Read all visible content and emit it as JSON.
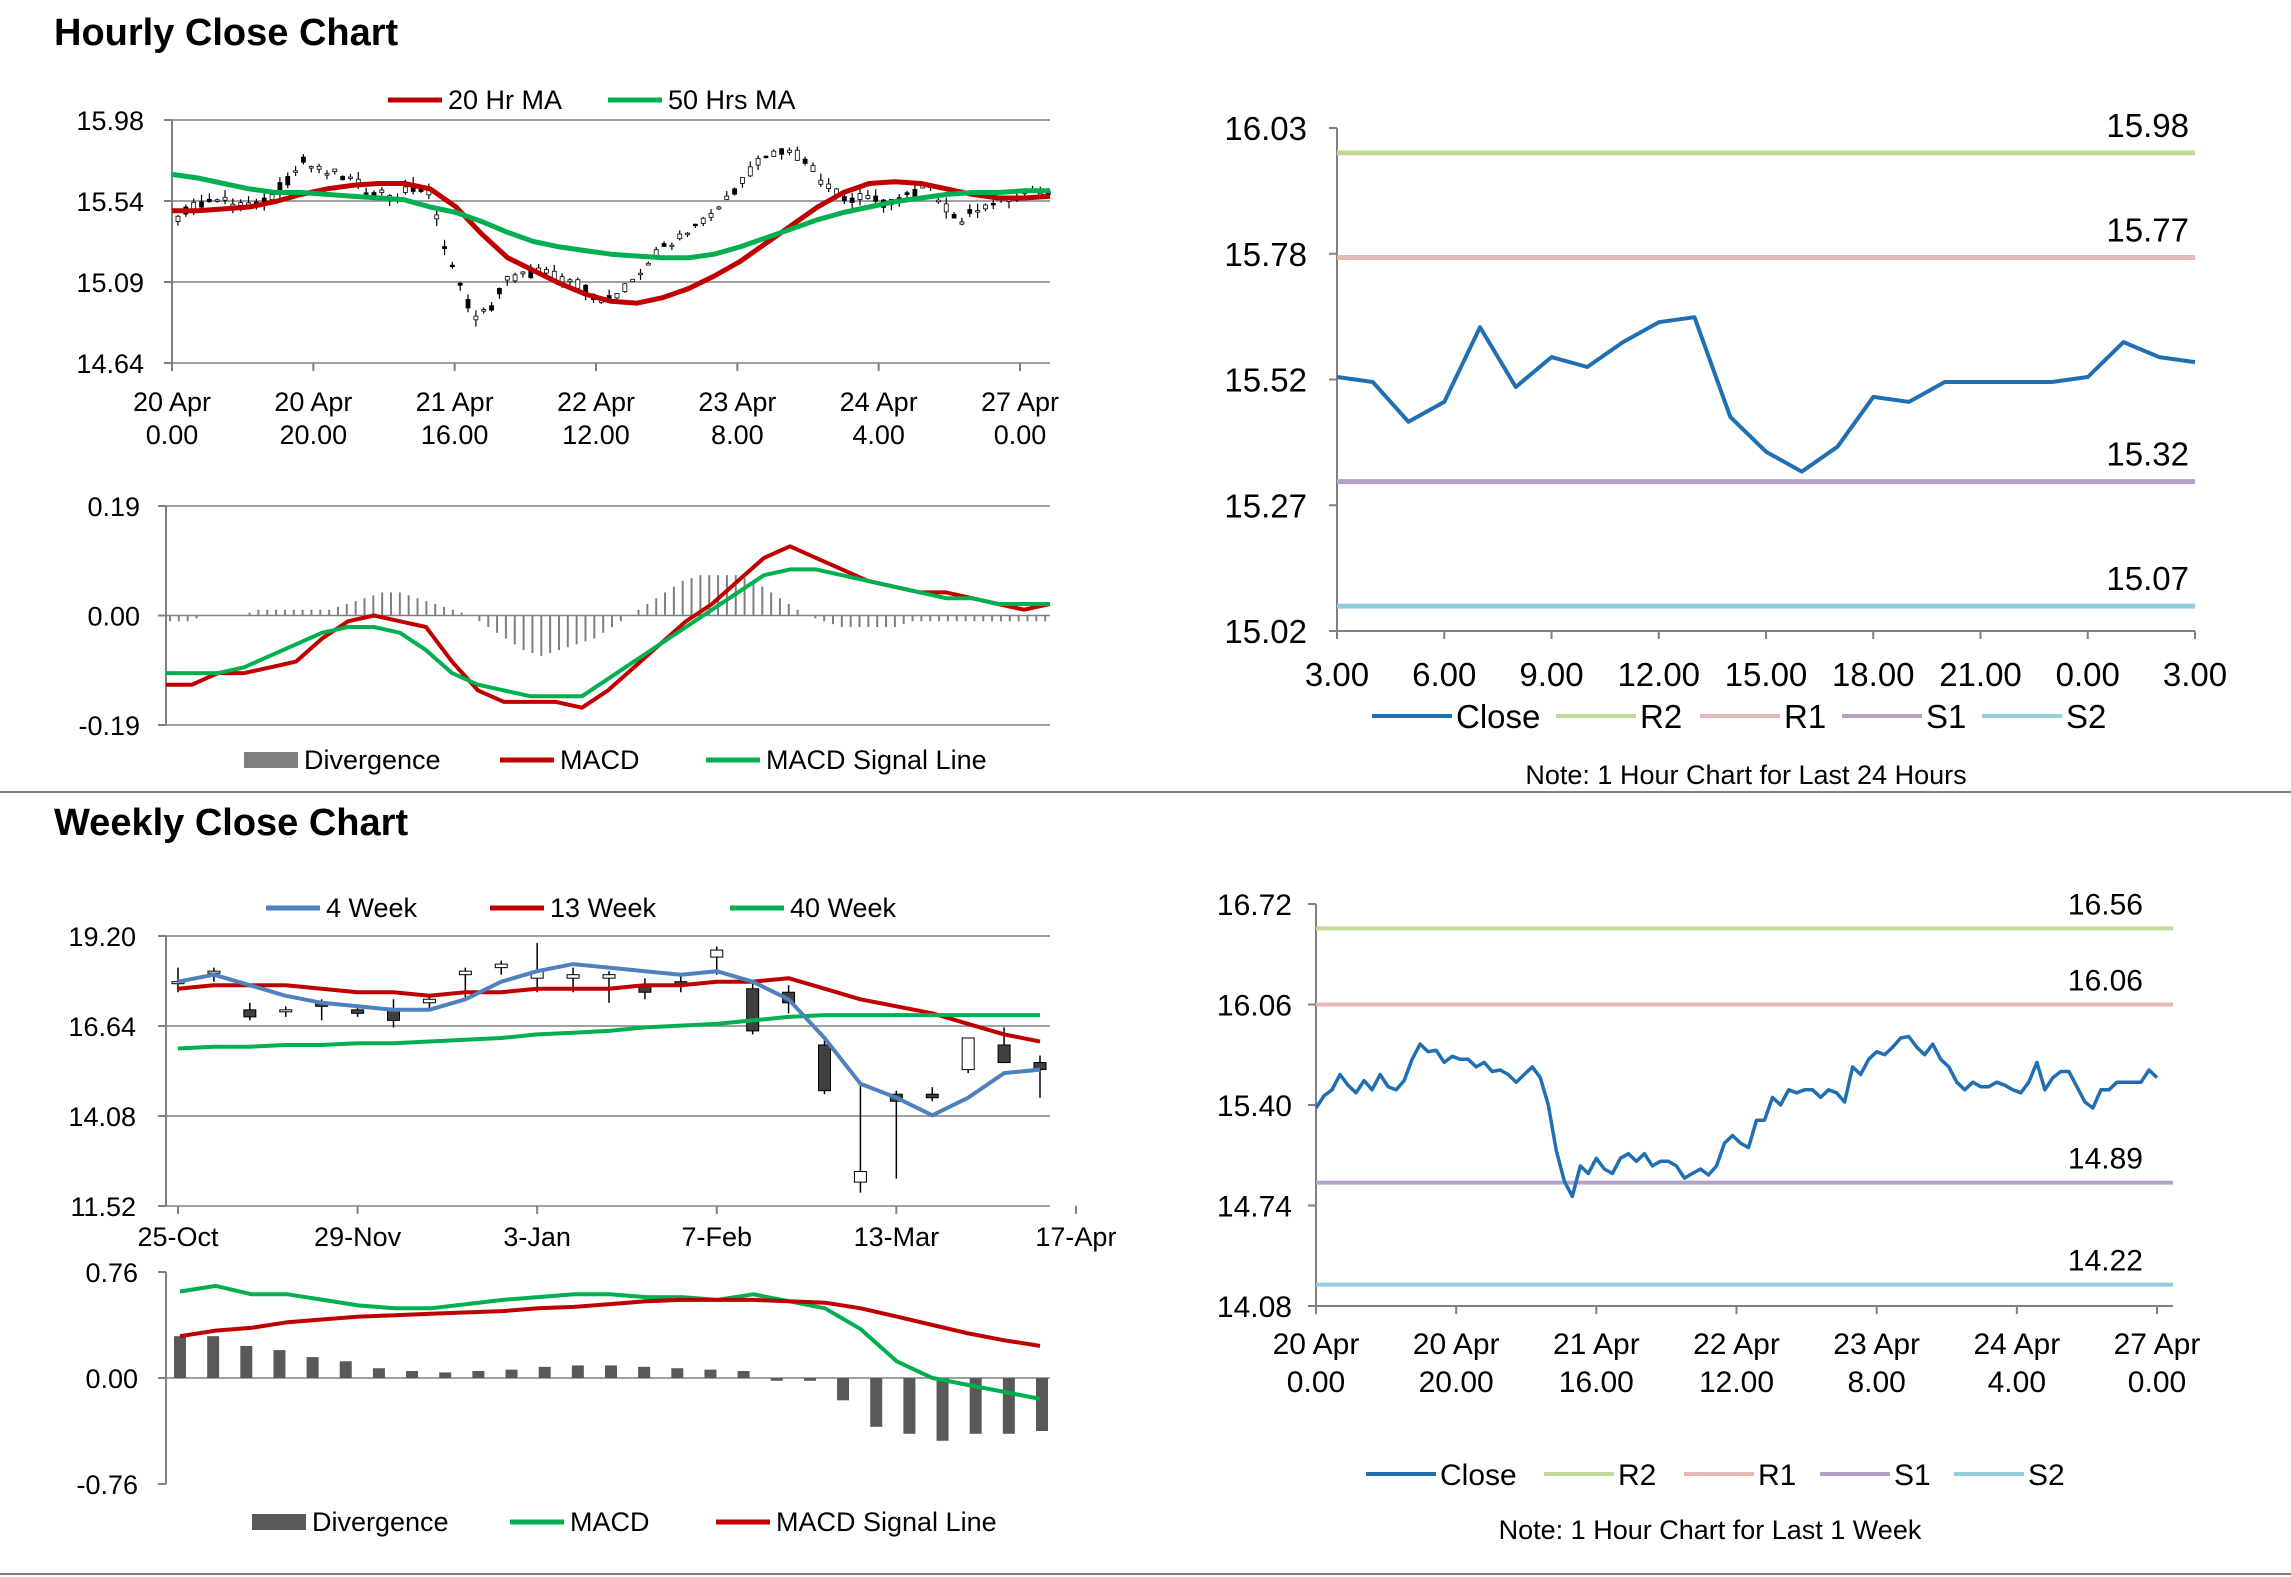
{
  "sections": {
    "hourly_title": "Hourly Close Chart",
    "weekly_title": "Weekly Close Chart"
  },
  "colors": {
    "ma_red": "#c00000",
    "ma_green": "#00b050",
    "ma_blue": "#4f81bd",
    "close_blue": "#1f6fb2",
    "r2": "#c4d79b",
    "r1": "#e6b9b8",
    "s1": "#b3a2c7",
    "s2": "#93cddd",
    "divergence": "#7f7f7f",
    "divergence_weekly": "#595959"
  },
  "chart_data": [
    {
      "id": "hourly-price",
      "type": "candlestick",
      "title": "",
      "ylim": [
        14.64,
        15.98
      ],
      "yticks": [
        "15.98",
        "15.54",
        "15.09",
        "14.64"
      ],
      "xticks": [
        {
          "l1": "20 Apr",
          "l2": "0.00"
        },
        {
          "l1": "20 Apr",
          "l2": "20.00"
        },
        {
          "l1": "21 Apr",
          "l2": "16.00"
        },
        {
          "l1": "22 Apr",
          "l2": "12.00"
        },
        {
          "l1": "23 Apr",
          "l2": "8.00"
        },
        {
          "l1": "24 Apr",
          "l2": "4.00"
        },
        {
          "l1": "27 Apr",
          "l2": "0.00"
        }
      ],
      "legend": [
        "20 Hr MA",
        "50 Hrs MA"
      ],
      "close_path": [
        15.45,
        15.5,
        15.55,
        15.53,
        15.52,
        15.5,
        15.56,
        15.65,
        15.75,
        15.7,
        15.68,
        15.65,
        15.6,
        15.58,
        15.57,
        15.6,
        15.58,
        15.3,
        15.05,
        14.88,
        14.95,
        15.1,
        15.12,
        15.15,
        15.12,
        15.1,
        15.05,
        14.98,
        15.0,
        15.1,
        15.2,
        15.28,
        15.35,
        15.4,
        15.45,
        15.55,
        15.65,
        15.75,
        15.8,
        15.82,
        15.75,
        15.65,
        15.58,
        15.55,
        15.55,
        15.52,
        15.55,
        15.58,
        15.6,
        15.5,
        15.42,
        15.5,
        15.52,
        15.54,
        15.56,
        15.58
      ],
      "series": [
        {
          "name": "20 Hr MA",
          "values": [
            15.48,
            15.48,
            15.49,
            15.5,
            15.53,
            15.57,
            15.6,
            15.62,
            15.63,
            15.63,
            15.6,
            15.5,
            15.35,
            15.22,
            15.15,
            15.08,
            15.02,
            14.98,
            14.97,
            15.0,
            15.05,
            15.12,
            15.2,
            15.3,
            15.4,
            15.5,
            15.58,
            15.63,
            15.64,
            15.63,
            15.6,
            15.57,
            15.55,
            15.55,
            15.56
          ]
        },
        {
          "name": "50 Hrs MA",
          "values": [
            15.68,
            15.66,
            15.63,
            15.6,
            15.58,
            15.58,
            15.57,
            15.56,
            15.55,
            15.54,
            15.5,
            15.47,
            15.42,
            15.36,
            15.31,
            15.28,
            15.26,
            15.24,
            15.23,
            15.22,
            15.22,
            15.24,
            15.28,
            15.33,
            15.38,
            15.43,
            15.47,
            15.5,
            15.53,
            15.55,
            15.57,
            15.58,
            15.58,
            15.59,
            15.59
          ]
        }
      ]
    },
    {
      "id": "hourly-macd",
      "type": "bar+line",
      "ylim": [
        -0.19,
        0.19
      ],
      "yticks": [
        "0.19",
        "0.00",
        "-0.19"
      ],
      "legend": [
        "Divergence",
        "MACD",
        "MACD Signal Line"
      ],
      "divergence": [
        -0.01,
        -0.01,
        0.0,
        0.0,
        0.0,
        0.01,
        0.01,
        0.01,
        0.01,
        0.01,
        0.02,
        0.03,
        0.04,
        0.04,
        0.03,
        0.02,
        0.01,
        0.0,
        -0.02,
        -0.04,
        -0.06,
        -0.07,
        -0.06,
        -0.05,
        -0.04,
        -0.02,
        0.0,
        0.02,
        0.04,
        0.06,
        0.07,
        0.07,
        0.07,
        0.06,
        0.04,
        0.02,
        0.0,
        -0.01,
        -0.02,
        -0.02,
        -0.02,
        -0.02,
        -0.01,
        -0.01,
        -0.01,
        -0.01,
        -0.01,
        -0.01,
        -0.01,
        -0.01
      ],
      "series": [
        {
          "name": "MACD",
          "values": [
            -0.12,
            -0.12,
            -0.1,
            -0.1,
            -0.09,
            -0.08,
            -0.04,
            -0.01,
            0.0,
            -0.01,
            -0.02,
            -0.08,
            -0.13,
            -0.15,
            -0.15,
            -0.15,
            -0.16,
            -0.13,
            -0.09,
            -0.05,
            -0.01,
            0.02,
            0.06,
            0.1,
            0.12,
            0.1,
            0.08,
            0.06,
            0.05,
            0.04,
            0.04,
            0.03,
            0.02,
            0.01,
            0.02
          ]
        },
        {
          "name": "MACD Signal Line",
          "values": [
            -0.1,
            -0.1,
            -0.1,
            -0.09,
            -0.07,
            -0.05,
            -0.03,
            -0.02,
            -0.02,
            -0.03,
            -0.06,
            -0.1,
            -0.12,
            -0.13,
            -0.14,
            -0.14,
            -0.14,
            -0.11,
            -0.08,
            -0.05,
            -0.02,
            0.01,
            0.04,
            0.07,
            0.08,
            0.08,
            0.07,
            0.06,
            0.05,
            0.04,
            0.03,
            0.03,
            0.02,
            0.02,
            0.02
          ]
        }
      ]
    },
    {
      "id": "hourly-close-24h",
      "type": "line",
      "ylim": [
        15.02,
        16.03
      ],
      "yticks": [
        "16.03",
        "15.78",
        "15.52",
        "15.27",
        "15.02"
      ],
      "xticks": [
        "3.00",
        "6.00",
        "9.00",
        "12.00",
        "15.00",
        "18.00",
        "21.00",
        "0.00",
        "3.00"
      ],
      "x": [
        3,
        4,
        5,
        6,
        7,
        8,
        9,
        10,
        11,
        12,
        13,
        14,
        15,
        16,
        17,
        18,
        19,
        20,
        21,
        22,
        23,
        24,
        25,
        26,
        27
      ],
      "values": [
        15.53,
        15.52,
        15.44,
        15.48,
        15.63,
        15.51,
        15.57,
        15.55,
        15.6,
        15.64,
        15.65,
        15.45,
        15.38,
        15.34,
        15.39,
        15.49,
        15.48,
        15.52,
        15.52,
        15.52,
        15.52,
        15.53,
        15.6,
        15.57,
        15.56
      ],
      "levels": [
        {
          "name": "R2",
          "value": 15.98,
          "label": "15.98"
        },
        {
          "name": "R1",
          "value": 15.77,
          "label": "15.77"
        },
        {
          "name": "S1",
          "value": 15.32,
          "label": "15.32"
        },
        {
          "name": "S2",
          "value": 15.07,
          "label": "15.07"
        }
      ],
      "legend": [
        "Close",
        "R2",
        "R1",
        "S1",
        "S2"
      ],
      "note": "Note: 1 Hour Chart for Last 24 Hours"
    },
    {
      "id": "weekly-price",
      "type": "candlestick",
      "ylim": [
        11.52,
        19.2
      ],
      "yticks": [
        "19.20",
        "16.64",
        "14.08",
        "11.52"
      ],
      "xticks": [
        "25-Oct",
        "29-Nov",
        "3-Jan",
        "7-Feb",
        "13-Mar",
        "17-Apr"
      ],
      "legend": [
        "4 Week",
        "13 Week",
        "40 Week"
      ],
      "candles": [
        {
          "o": 17.9,
          "h": 18.3,
          "l": 17.6,
          "c": 17.9
        },
        {
          "o": 18.2,
          "h": 18.3,
          "l": 17.9,
          "c": 18.2
        },
        {
          "o": 17.1,
          "h": 17.3,
          "l": 16.8,
          "c": 16.9
        },
        {
          "o": 17.1,
          "h": 17.2,
          "l": 16.9,
          "c": 17.1
        },
        {
          "o": 17.3,
          "h": 17.4,
          "l": 16.8,
          "c": 17.2
        },
        {
          "o": 17.1,
          "h": 17.2,
          "l": 16.9,
          "c": 17.0
        },
        {
          "o": 17.1,
          "h": 17.4,
          "l": 16.6,
          "c": 16.8
        },
        {
          "o": 17.3,
          "h": 17.5,
          "l": 17.1,
          "c": 17.4
        },
        {
          "o": 18.1,
          "h": 18.3,
          "l": 17.4,
          "c": 18.2
        },
        {
          "o": 18.3,
          "h": 18.5,
          "l": 18.1,
          "c": 18.4
        },
        {
          "o": 18.0,
          "h": 19.0,
          "l": 17.6,
          "c": 18.2
        },
        {
          "o": 18.0,
          "h": 18.3,
          "l": 17.6,
          "c": 18.1
        },
        {
          "o": 18.0,
          "h": 18.2,
          "l": 17.3,
          "c": 18.1
        },
        {
          "o": 17.8,
          "h": 18.0,
          "l": 17.4,
          "c": 17.6
        },
        {
          "o": 17.9,
          "h": 18.1,
          "l": 17.6,
          "c": 17.8
        },
        {
          "o": 18.6,
          "h": 18.9,
          "l": 18.1,
          "c": 18.8
        },
        {
          "o": 17.7,
          "h": 17.9,
          "l": 16.4,
          "c": 16.5
        },
        {
          "o": 17.6,
          "h": 17.8,
          "l": 17.0,
          "c": 17.3
        },
        {
          "o": 16.1,
          "h": 16.3,
          "l": 14.7,
          "c": 14.8
        },
        {
          "o": 12.2,
          "h": 15.0,
          "l": 11.9,
          "c": 12.5
        },
        {
          "o": 14.7,
          "h": 14.8,
          "l": 12.3,
          "c": 14.5
        },
        {
          "o": 14.7,
          "h": 14.9,
          "l": 14.5,
          "c": 14.6
        },
        {
          "o": 15.4,
          "h": 16.3,
          "l": 15.3,
          "c": 16.3
        },
        {
          "o": 16.1,
          "h": 16.6,
          "l": 15.6,
          "c": 15.6
        },
        {
          "o": 15.6,
          "h": 15.8,
          "l": 14.6,
          "c": 15.4
        }
      ],
      "series": [
        {
          "name": "4 Week",
          "values": [
            17.9,
            18.1,
            17.8,
            17.5,
            17.3,
            17.2,
            17.1,
            17.1,
            17.4,
            17.9,
            18.2,
            18.4,
            18.3,
            18.2,
            18.1,
            18.2,
            17.9,
            17.4,
            16.3,
            15.0,
            14.6,
            14.1,
            14.6,
            15.3,
            15.4
          ]
        },
        {
          "name": "13 Week",
          "values": [
            17.7,
            17.8,
            17.8,
            17.8,
            17.7,
            17.6,
            17.6,
            17.5,
            17.6,
            17.6,
            17.7,
            17.7,
            17.7,
            17.8,
            17.8,
            17.9,
            17.9,
            18.0,
            17.7,
            17.4,
            17.2,
            17.0,
            16.7,
            16.4,
            16.2
          ]
        },
        {
          "name": "40 Week",
          "values": [
            16.0,
            16.05,
            16.05,
            16.1,
            16.1,
            16.15,
            16.15,
            16.2,
            16.25,
            16.3,
            16.4,
            16.45,
            16.5,
            16.6,
            16.65,
            16.7,
            16.8,
            16.9,
            16.95,
            16.95,
            16.95,
            16.95,
            16.95,
            16.95,
            16.95
          ]
        }
      ]
    },
    {
      "id": "weekly-macd",
      "type": "bar+line",
      "ylim": [
        -0.76,
        0.76
      ],
      "yticks": [
        "0.76",
        "0.00",
        "-0.76"
      ],
      "legend": [
        "Divergence",
        "MACD",
        "MACD Signal Line"
      ],
      "divergence": [
        0.3,
        0.3,
        0.23,
        0.2,
        0.15,
        0.12,
        0.07,
        0.05,
        0.04,
        0.05,
        0.06,
        0.08,
        0.09,
        0.09,
        0.08,
        0.07,
        0.06,
        0.05,
        -0.02,
        -0.02,
        -0.16,
        -0.35,
        -0.4,
        -0.45,
        -0.4,
        -0.4,
        -0.38
      ],
      "series": [
        {
          "name": "MACD",
          "values": [
            0.62,
            0.66,
            0.6,
            0.6,
            0.56,
            0.52,
            0.5,
            0.5,
            0.53,
            0.56,
            0.58,
            0.6,
            0.6,
            0.58,
            0.58,
            0.56,
            0.6,
            0.55,
            0.5,
            0.35,
            0.12,
            0.0,
            -0.05,
            -0.1,
            -0.15
          ]
        },
        {
          "name": "MACD Signal Line",
          "values": [
            0.3,
            0.34,
            0.36,
            0.4,
            0.42,
            0.44,
            0.45,
            0.46,
            0.47,
            0.48,
            0.5,
            0.51,
            0.53,
            0.55,
            0.56,
            0.56,
            0.56,
            0.55,
            0.54,
            0.5,
            0.44,
            0.38,
            0.32,
            0.27,
            0.23
          ]
        }
      ]
    },
    {
      "id": "weekly-close-1w",
      "type": "line",
      "ylim": [
        14.08,
        16.72
      ],
      "yticks": [
        "16.72",
        "16.06",
        "15.40",
        "14.74",
        "14.08"
      ],
      "xticks": [
        {
          "l1": "20 Apr",
          "l2": "0.00"
        },
        {
          "l1": "20 Apr",
          "l2": "20.00"
        },
        {
          "l1": "21 Apr",
          "l2": "16.00"
        },
        {
          "l1": "22 Apr",
          "l2": "12.00"
        },
        {
          "l1": "23 Apr",
          "l2": "8.00"
        },
        {
          "l1": "24 Apr",
          "l2": "4.00"
        },
        {
          "l1": "27 Apr",
          "l2": "0.00"
        }
      ],
      "values": [
        15.38,
        15.46,
        15.5,
        15.6,
        15.53,
        15.48,
        15.56,
        15.5,
        15.6,
        15.52,
        15.5,
        15.56,
        15.7,
        15.8,
        15.75,
        15.76,
        15.68,
        15.72,
        15.7,
        15.7,
        15.65,
        15.68,
        15.62,
        15.63,
        15.6,
        15.55,
        15.6,
        15.65,
        15.58,
        15.4,
        15.1,
        14.9,
        14.8,
        15.0,
        14.95,
        15.05,
        14.98,
        14.95,
        15.05,
        15.08,
        15.03,
        15.08,
        15.0,
        15.03,
        15.03,
        15.0,
        14.92,
        14.95,
        14.98,
        14.94,
        15.0,
        15.15,
        15.2,
        15.15,
        15.12,
        15.3,
        15.3,
        15.45,
        15.4,
        15.5,
        15.48,
        15.5,
        15.5,
        15.45,
        15.5,
        15.48,
        15.42,
        15.65,
        15.6,
        15.7,
        15.75,
        15.73,
        15.78,
        15.84,
        15.85,
        15.78,
        15.73,
        15.8,
        15.7,
        15.65,
        15.55,
        15.5,
        15.55,
        15.52,
        15.52,
        15.55,
        15.53,
        15.5,
        15.48,
        15.55,
        15.68,
        15.5,
        15.58,
        15.62,
        15.62,
        15.52,
        15.42,
        15.38,
        15.5,
        15.5,
        15.55,
        15.55,
        15.55,
        15.55,
        15.63,
        15.58
      ],
      "levels": [
        {
          "name": "R2",
          "value": 16.56,
          "label": "16.56"
        },
        {
          "name": "R1",
          "value": 16.06,
          "label": "16.06"
        },
        {
          "name": "S1",
          "value": 14.89,
          "label": "14.89"
        },
        {
          "name": "S2",
          "value": 14.22,
          "label": "14.22"
        }
      ],
      "legend": [
        "Close",
        "R2",
        "R1",
        "S1",
        "S2"
      ],
      "note": "Note: 1 Hour Chart for Last 1 Week"
    }
  ]
}
